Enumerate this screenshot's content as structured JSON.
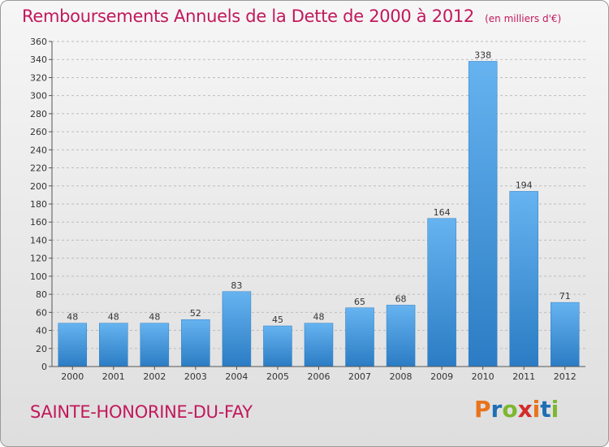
{
  "header": {
    "title": "Remboursements Annuels de la Dette de 2000 à 2012",
    "unit": "(en milliers d'€)"
  },
  "footer": {
    "town": "SAINTE-HONORINE-DU-FAY",
    "brand": "Proxiti",
    "brand_colors": [
      "#e8731c",
      "#1e6fb5",
      "#7db72f",
      "#d42b2b",
      "#e8731c",
      "#1e6fb5",
      "#7db72f"
    ]
  },
  "colors": {
    "bar": "#4a9be0",
    "bar_light": "#66b3f0",
    "bar_dark": "#2b7cc4",
    "grid": "#bdbdbd",
    "axis": "#555555"
  },
  "chart_data": {
    "type": "bar",
    "categories": [
      "2000",
      "2001",
      "2002",
      "2003",
      "2004",
      "2005",
      "2006",
      "2007",
      "2008",
      "2009",
      "2010",
      "2011",
      "2012"
    ],
    "values": [
      48,
      48,
      48,
      52,
      83,
      45,
      48,
      65,
      68,
      164,
      338,
      194,
      71
    ],
    "data_labels": [
      "48",
      "48",
      "48",
      "52",
      "83",
      "45",
      "48",
      "65",
      "68",
      "164",
      "338",
      "194",
      "71"
    ],
    "yticks": [
      "0",
      "20",
      "40",
      "60",
      "80",
      "100",
      "120",
      "140",
      "160",
      "180",
      "200",
      "220",
      "240",
      "260",
      "280",
      "300",
      "320",
      "340",
      "360"
    ],
    "ylim": [
      0,
      360
    ],
    "grid": true,
    "title": "Remboursements Annuels de la Dette de 2000 à 2012",
    "xlabel": "",
    "ylabel": ""
  }
}
